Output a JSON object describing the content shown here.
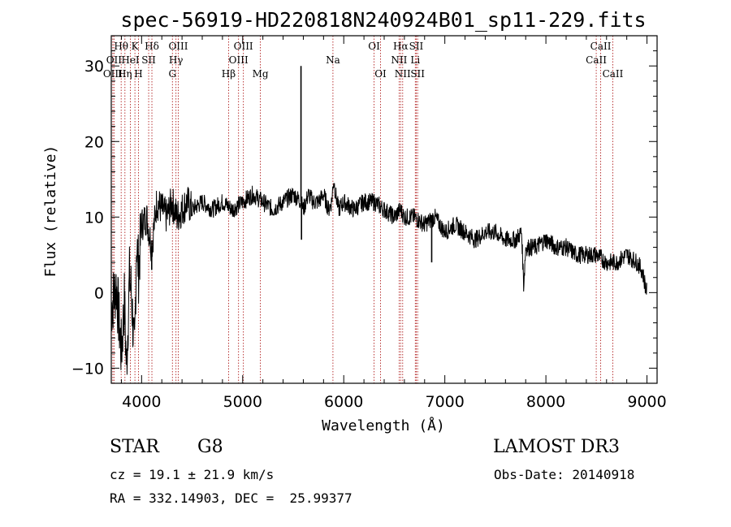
{
  "chart_data": {
    "type": "line",
    "title": "spec-56919-HD220818N240924B01_sp11-229.fits",
    "xlabel": "Wavelength (Å)",
    "ylabel": "Flux (relative)",
    "xlim": [
      3700,
      9100
    ],
    "ylim": [
      -12,
      34
    ],
    "xticks": [
      4000,
      5000,
      6000,
      7000,
      8000,
      9000
    ],
    "yticks": [
      -10,
      0,
      10,
      20,
      30
    ],
    "series": [
      {
        "name": "spectrum",
        "x": [
          3700,
          3750,
          3800,
          3830,
          3850,
          3880,
          3900,
          3930,
          3950,
          3970,
          4000,
          4050,
          4100,
          4150,
          4200,
          4250,
          4300,
          4350,
          4400,
          4450,
          4500,
          4600,
          4700,
          4800,
          4900,
          5000,
          5100,
          5200,
          5300,
          5400,
          5500,
          5580,
          5600,
          5650,
          5700,
          5750,
          5800,
          5850,
          5880,
          5900,
          5920,
          5950,
          6000,
          6100,
          6200,
          6300,
          6400,
          6500,
          6560,
          6600,
          6700,
          6800,
          6900,
          7000,
          7100,
          7200,
          7300,
          7400,
          7500,
          7600,
          7700,
          7760,
          7780,
          7800,
          7900,
          8000,
          8100,
          8200,
          8300,
          8400,
          8500,
          8600,
          8700,
          8800,
          8900,
          8950,
          9000
        ],
        "y": [
          -2,
          1,
          -8,
          -1,
          -10,
          2,
          0,
          -9,
          7,
          3,
          9,
          10,
          6,
          12,
          11,
          10,
          12,
          10,
          11,
          12,
          11,
          12,
          11,
          12,
          11,
          12,
          13,
          12,
          11,
          12,
          13,
          12,
          11,
          13,
          12,
          12,
          13,
          11,
          12,
          15,
          13,
          11,
          12,
          11,
          12,
          12,
          11,
          10,
          11,
          10,
          10,
          9,
          10,
          8,
          9,
          8,
          7,
          8,
          8,
          7,
          7,
          8,
          1,
          6,
          6,
          7,
          6,
          6,
          5,
          5,
          5,
          4,
          4,
          5,
          4,
          3,
          0
        ],
        "spikes": [
          {
            "x": 5577,
            "y": 30
          },
          {
            "x": 5582,
            "y": 7
          },
          {
            "x": 7780,
            "y": 1
          },
          {
            "x": 6870,
            "y": 4
          },
          {
            "x": 4100,
            "y": 3
          }
        ]
      }
    ],
    "lines": [
      {
        "label": "Hθ",
        "x": 3798,
        "row": 0
      },
      {
        "label": "OII",
        "x": 3727,
        "row": 1
      },
      {
        "label": "OIII",
        "x": 3715,
        "row": 2
      },
      {
        "label": "Hη",
        "x": 3835,
        "row": 2
      },
      {
        "label": "K",
        "x": 3934,
        "row": 0
      },
      {
        "label": "HeI",
        "x": 3889,
        "row": 1
      },
      {
        "label": "H",
        "x": 3969,
        "row": 2
      },
      {
        "label": "Hδ",
        "x": 4102,
        "row": 0
      },
      {
        "label": "SII",
        "x": 4070,
        "row": 1
      },
      {
        "label": "OIII",
        "x": 4363,
        "row": 0
      },
      {
        "label": "Hγ",
        "x": 4340,
        "row": 1
      },
      {
        "label": "G",
        "x": 4305,
        "row": 2
      },
      {
        "label": "OIII",
        "x": 5007,
        "row": 0
      },
      {
        "label": "OIII",
        "x": 4959,
        "row": 1
      },
      {
        "label": "Hβ",
        "x": 4861,
        "row": 2
      },
      {
        "label": "Mg",
        "x": 5175,
        "row": 2
      },
      {
        "label": "Na",
        "x": 5893,
        "row": 1
      },
      {
        "label": "OI",
        "x": 6300,
        "row": 0
      },
      {
        "label": "OI",
        "x": 6364,
        "row": 2
      },
      {
        "label": "Hα",
        "x": 6563,
        "row": 0
      },
      {
        "label": "SII",
        "x": 6717,
        "row": 0
      },
      {
        "label": "NII",
        "x": 6548,
        "row": 1
      },
      {
        "label": "Li",
        "x": 6708,
        "row": 1
      },
      {
        "label": "NII",
        "x": 6583,
        "row": 2
      },
      {
        "label": "SII",
        "x": 6731,
        "row": 2
      },
      {
        "label": "CaII",
        "x": 8542,
        "row": 0
      },
      {
        "label": "CaII",
        "x": 8498,
        "row": 1
      },
      {
        "label": "CaII",
        "x": 8662,
        "row": 2
      }
    ]
  },
  "info": {
    "class": "STAR",
    "subclass": "G8",
    "survey": "LAMOST DR3",
    "cz": "cz = 19.1 ± 21.9 km/s",
    "obs_date": "Obs-Date: 20140918",
    "coords": "RA = 332.14903, DEC =  25.99377"
  },
  "colors": {
    "line_marker": "#b22222",
    "spectrum": "#000000"
  }
}
